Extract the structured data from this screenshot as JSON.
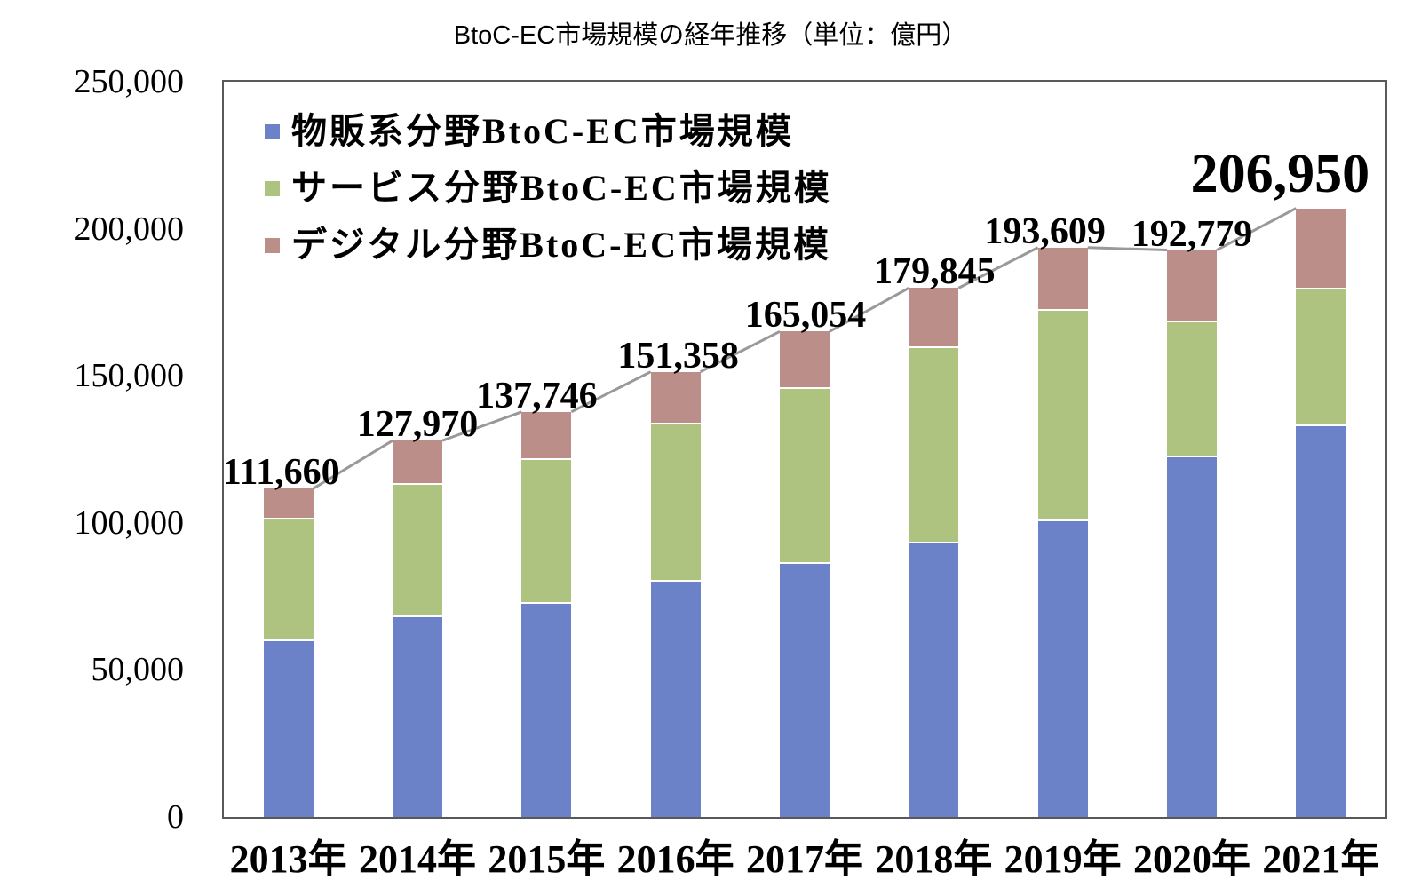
{
  "title": "BtoC-EC市場規模の経年推移（単位：億円）",
  "chart_data": {
    "type": "bar",
    "stacked": true,
    "title": "BtoC-EC市場規模の経年推移（単位：億円）",
    "categories": [
      "2013年",
      "2014年",
      "2015年",
      "2016年",
      "2017年",
      "2018年",
      "2019年",
      "2020年",
      "2021年"
    ],
    "series": [
      {
        "name": "物販系分野BtoC-EC市場規模",
        "color": "#6C82C8",
        "values": [
          59931,
          68043,
          72398,
          80043,
          86008,
          92992,
          100515,
          122333,
          132865
        ]
      },
      {
        "name": "サービス分野BtoC-EC市場規模",
        "color": "#AFC380",
        "values": [
          41210,
          44816,
          49014,
          53532,
          59568,
          66471,
          71672,
          45832,
          46424
        ]
      },
      {
        "name": "デジタル分野BtoC-EC市場規模",
        "color": "#BC8E8A",
        "values": [
          10519,
          15111,
          16334,
          17783,
          19478,
          20382,
          21422,
          24614,
          27661
        ]
      }
    ],
    "totals": [
      111660,
      127970,
      137746,
      151358,
      165054,
      179845,
      193609,
      192779,
      206950
    ],
    "total_labels": [
      "111,660",
      "127,970",
      "137,746",
      "151,358",
      "165,054",
      "179,845",
      "193,609",
      "192,779",
      "206,950"
    ],
    "yticks": [
      {
        "value": 0,
        "label": "0"
      },
      {
        "value": 50000,
        "label": "50,000"
      },
      {
        "value": 100000,
        "label": "100,000"
      },
      {
        "value": 150000,
        "label": "150,000"
      },
      {
        "value": 200000,
        "label": "200,000"
      },
      {
        "value": 250000,
        "label": "250,000"
      }
    ],
    "ylim": [
      0,
      250000
    ],
    "xlabel": "",
    "ylabel": "",
    "grid": false,
    "legend_position": "top-left-inside",
    "colors": {
      "connector_line": "#999999",
      "plot_border": "#595959",
      "text": "#000000",
      "background": "#FFFFFF"
    }
  }
}
